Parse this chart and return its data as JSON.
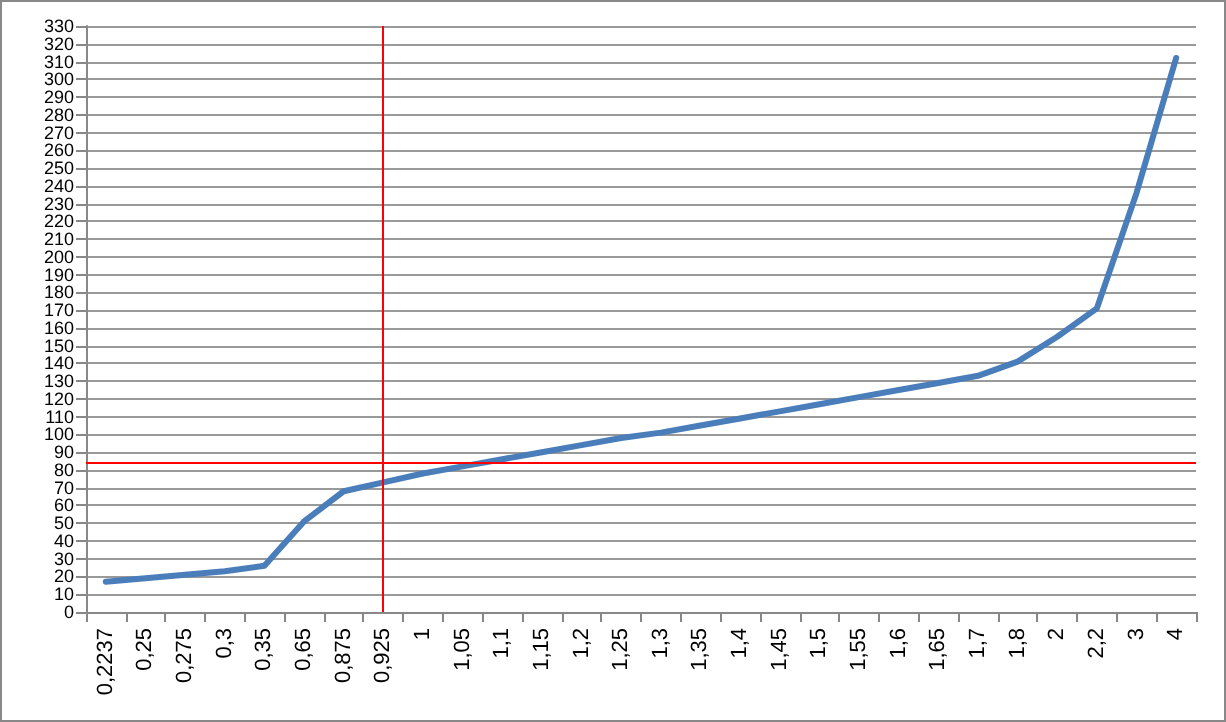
{
  "chart_data": {
    "type": "line",
    "categories": [
      "0,2237",
      "0,25",
      "0,275",
      "0,3",
      "0,35",
      "0,65",
      "0,875",
      "0,925",
      "1",
      "1,05",
      "1,1",
      "1,15",
      "1,2",
      "1,25",
      "1,3",
      "1,35",
      "1,4",
      "1,45",
      "1,5",
      "1,55",
      "1,6",
      "1,65",
      "1,7",
      "1,8",
      "2",
      "2,2",
      "3",
      "4"
    ],
    "series": [
      {
        "color": "#4a7ebb",
        "values": [
          17,
          19,
          21,
          23,
          26,
          51,
          68,
          73,
          78,
          82,
          86,
          90,
          94,
          98,
          101,
          105,
          109,
          113,
          117,
          121,
          125,
          129,
          133,
          141,
          155,
          171,
          236,
          312
        ]
      }
    ],
    "ylim": [
      0,
      330
    ],
    "yticks": [
      0,
      10,
      20,
      30,
      40,
      50,
      60,
      70,
      80,
      90,
      100,
      110,
      120,
      130,
      140,
      150,
      160,
      170,
      180,
      190,
      200,
      210,
      220,
      230,
      240,
      250,
      260,
      270,
      280,
      290,
      300,
      310,
      320,
      330
    ],
    "grid": "y",
    "marker": "none",
    "line_style": "solid",
    "ref_lines": [
      {
        "axis": "y",
        "value": 84,
        "color": "#ff0000"
      },
      {
        "axis": "x",
        "value": "0,925",
        "color": "#ff0000"
      }
    ]
  }
}
